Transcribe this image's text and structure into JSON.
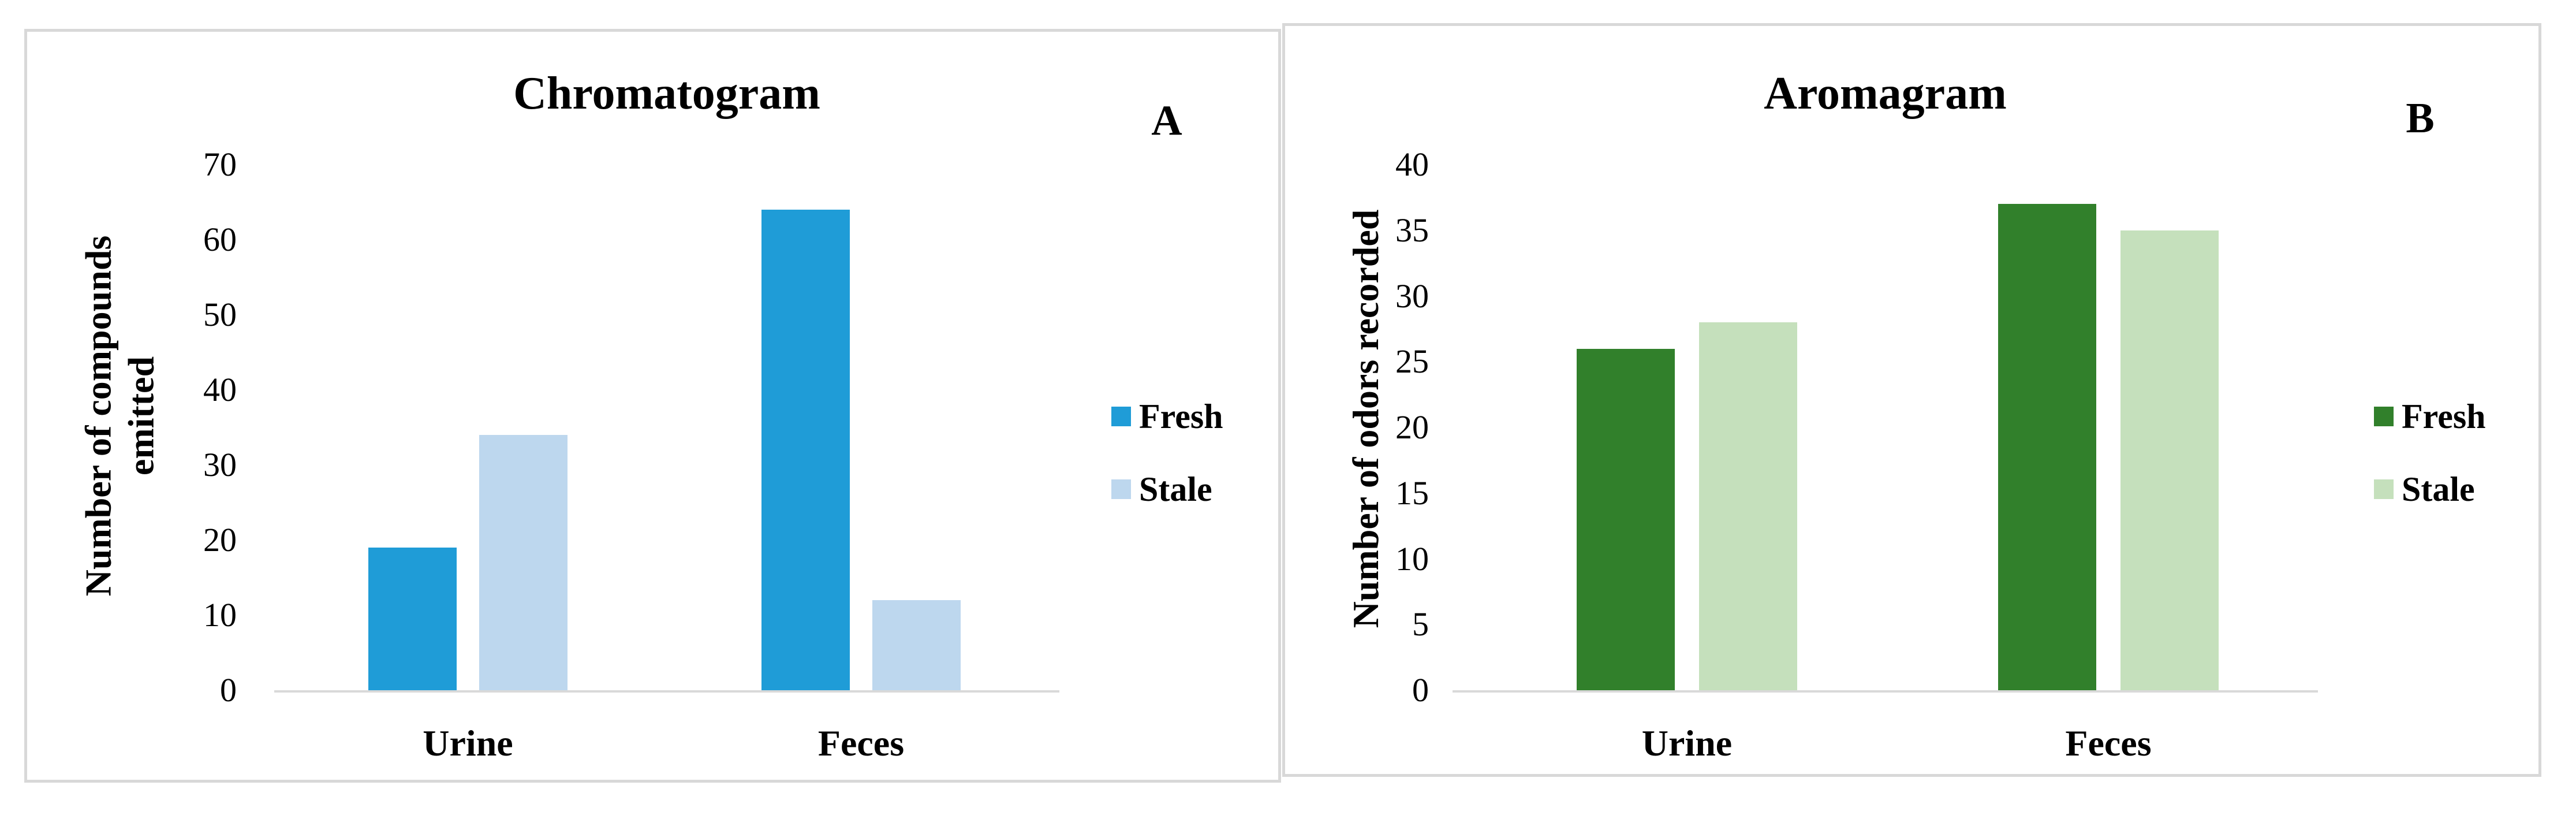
{
  "figure": {
    "background": "#FFFFFF",
    "panels": [
      {
        "panel_label": "A",
        "title": "Chromatogram"
      },
      {
        "panel_label": "B",
        "title": "Aromagram"
      }
    ]
  },
  "chart_data": [
    {
      "type": "bar",
      "title": "Chromatogram",
      "panel_label": "A",
      "xlabel": "",
      "ylabel": "Number of compounds\nemitted",
      "categories": [
        "Urine",
        "Feces"
      ],
      "series": [
        {
          "name": "Fresh",
          "color": "#1F9CD7",
          "values": [
            19,
            64
          ]
        },
        {
          "name": "Stale",
          "color": "#BDD7EE",
          "values": [
            34,
            12
          ]
        }
      ],
      "ylim": [
        0,
        70
      ],
      "ytick_step": 10,
      "ytick_labels": [
        "70",
        "60",
        "50",
        "40",
        "30",
        "20",
        "10",
        "0"
      ],
      "grid": false,
      "legend_position": "right"
    },
    {
      "type": "bar",
      "title": "Aromagram",
      "panel_label": "B",
      "xlabel": "",
      "ylabel": "Number of odors recorded",
      "categories": [
        "Urine",
        "Feces"
      ],
      "series": [
        {
          "name": "Fresh",
          "color": "#31802B",
          "values": [
            26,
            37
          ]
        },
        {
          "name": "Stale",
          "color": "#C5E0BC",
          "values": [
            28,
            35
          ]
        }
      ],
      "ylim": [
        0,
        40
      ],
      "ytick_step": 5,
      "ytick_labels": [
        "40",
        "35",
        "30",
        "25",
        "20",
        "15",
        "10",
        "5",
        "0"
      ],
      "grid": false,
      "legend_position": "right"
    }
  ],
  "colors": {
    "axis_line": "#D9D9D9",
    "panel_border": "#D8D8D8",
    "text": "#000000",
    "background": "#FFFFFF"
  }
}
